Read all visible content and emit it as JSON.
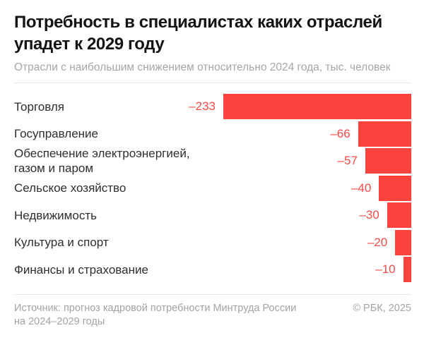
{
  "title": "Потребность в специалистах каких отраслей упадет к 2029 году",
  "subtitle": "Отрасли с наибольшим снижением относительно 2024 года, тыс. человек",
  "colors": {
    "bar": "#fb423c",
    "value_text": "#f94b45",
    "title_text": "#141414",
    "label_text": "#2e2e2e",
    "muted_text": "#a3a3a3",
    "divider": "#e6e6e6"
  },
  "chart_data": {
    "type": "bar",
    "orientation": "horizontal-right-anchored",
    "title": "Потребность в специалистах каких отраслей упадет к 2029 году",
    "subtitle": "Отрасли с наибольшим снижением относительно 2024 года, тыс. человек",
    "unit": "тыс. человек",
    "categories": [
      "Торговля",
      "Госуправление",
      "Обеспечение электроэнергией,\nгазом и паром",
      "Сельское хозяйство",
      "Недвижимость",
      "Культура и спорт",
      "Финансы и страхование"
    ],
    "values": [
      -233,
      -66,
      -57,
      -40,
      -30,
      -20,
      -10
    ],
    "value_labels": [
      "–233",
      "–66",
      "–57",
      "–40",
      "–30",
      "–20",
      "–10"
    ],
    "xlim": [
      0,
      233
    ],
    "grid": false,
    "legend": false
  },
  "footer": {
    "source_line1": "Источник: прогноз кадровой потребности Минтруда России",
    "source_line2": "на 2024–2029 годы",
    "copyright": "© РБК, 2025"
  }
}
